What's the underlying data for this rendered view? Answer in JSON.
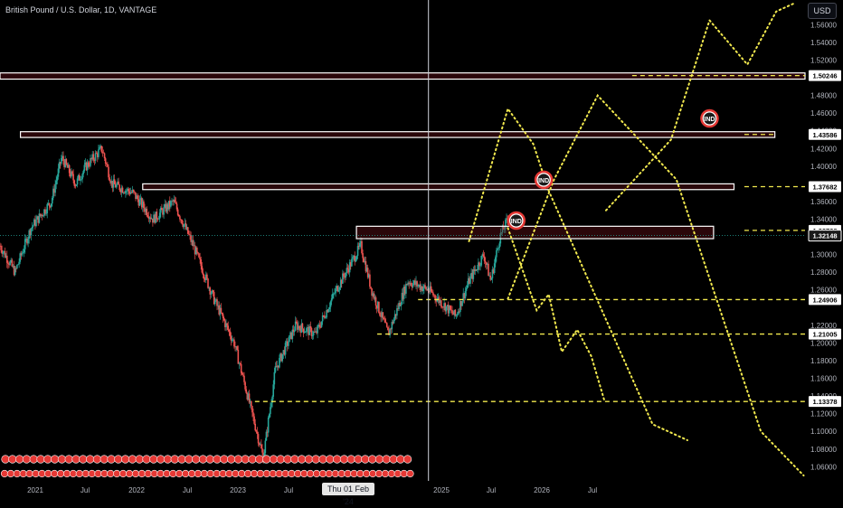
{
  "header": {
    "title": "British Pound / U.S. Dollar, 1D, VANTAGE",
    "currency_button": "USD"
  },
  "crosshair": {
    "date_label": "Thu 01 Feb '24"
  },
  "colors": {
    "background": "#000000",
    "candle_up": "#26a69a",
    "candle_down": "#ef5350",
    "projection": "#f2e94e",
    "level_line": "#f2e94e",
    "zone_border": "#ffffff",
    "marker": "#e53935",
    "axis_text": "#b2b5be"
  },
  "chart_data": {
    "type": "candlestick",
    "title": "British Pound / U.S. Dollar, 1D, VANTAGE",
    "x_axis": {
      "tick_labels": [
        "2021",
        "Jul",
        "2022",
        "Jul",
        "2023",
        "Jul",
        "2025",
        "Jul",
        "2026",
        "Jul"
      ],
      "range": [
        "2020-08",
        "2027-03"
      ]
    },
    "y_axis": {
      "tick_labels": [
        "1.56000",
        "1.54000",
        "1.52000",
        "1.48000",
        "1.46000",
        "1.44000",
        "1.42000",
        "1.40000",
        "1.38000",
        "1.36000",
        "1.34000",
        "1.30000",
        "1.28000",
        "1.26000",
        "1.22000",
        "1.20000",
        "1.18000",
        "1.16000",
        "1.14000",
        "1.12000",
        "1.10000",
        "1.08000",
        "1.06000"
      ],
      "tick_values": [
        1.56,
        1.54,
        1.52,
        1.48,
        1.46,
        1.44,
        1.42,
        1.4,
        1.38,
        1.36,
        1.34,
        1.3,
        1.28,
        1.26,
        1.22,
        1.2,
        1.18,
        1.16,
        1.14,
        1.12,
        1.1,
        1.08,
        1.06
      ],
      "range": [
        1.046,
        1.588
      ],
      "currency": "USD"
    },
    "price_path": {
      "x": [
        "2020-08-01",
        "2020-09-15",
        "2020-11-01",
        "2021-01-01",
        "2021-02-01",
        "2021-03-15",
        "2021-04-15",
        "2021-06-01",
        "2021-07-01",
        "2021-09-01",
        "2021-11-01",
        "2022-01-01",
        "2022-03-01",
        "2022-05-01",
        "2022-07-01",
        "2022-09-26",
        "2022-11-01",
        "2023-01-01",
        "2023-03-01",
        "2023-05-01",
        "2023-07-14",
        "2023-08-15",
        "2023-10-04",
        "2023-12-01",
        "2024-02-01",
        "2024-04-22",
        "2024-06-01",
        "2024-07-15",
        "2024-08-05",
        "2024-09-01",
        "2024-09-25"
      ],
      "y": [
        1.31,
        1.28,
        1.33,
        1.36,
        1.41,
        1.38,
        1.4,
        1.42,
        1.38,
        1.37,
        1.34,
        1.36,
        1.31,
        1.25,
        1.2,
        1.07,
        1.17,
        1.22,
        1.21,
        1.26,
        1.31,
        1.26,
        1.21,
        1.27,
        1.26,
        1.23,
        1.27,
        1.3,
        1.27,
        1.32,
        1.34
      ]
    },
    "current_price": 1.32148,
    "price_levels": [
      1.50246,
      1.43586,
      1.37682,
      1.32738,
      1.32148,
      1.24906,
      1.21005,
      1.13378
    ],
    "price_level_labels": [
      "1.50246",
      "1.43586",
      "1.37682",
      "1.32738",
      "1.32148",
      "1.24906",
      "1.21005",
      "1.13378"
    ],
    "zones": [
      {
        "from": "2020-08",
        "to": "2027-03",
        "y_low": 1.4985,
        "y_high": 1.5055
      },
      {
        "from": "2020-10",
        "to": "2026-12",
        "y_low": 1.4325,
        "y_high": 1.439
      },
      {
        "from": "2021-10",
        "to": "2026-08",
        "y_low": 1.3735,
        "y_high": 1.38
      },
      {
        "from": "2023-07",
        "to": "2026-06",
        "y_low": 1.318,
        "y_high": 1.332
      }
    ],
    "dashed_levels": [
      {
        "from": "2025-10",
        "to": "2027-03",
        "y": 1.50246
      },
      {
        "from": "2026-09",
        "to": "2026-12",
        "y": 1.43586
      },
      {
        "from": "2026-09",
        "to": "2027-03",
        "y": 1.37682
      },
      {
        "from": "2026-09",
        "to": "2027-03",
        "y": 1.32738
      },
      {
        "from": "2024-01",
        "to": "2027-03",
        "y": 1.24906
      },
      {
        "from": "2023-09",
        "to": "2027-03",
        "y": 1.21005
      },
      {
        "from": "2022-09",
        "to": "2027-03",
        "y": 1.13378
      }
    ],
    "projections": [
      {
        "x": [
          "2024-09-25",
          "2024-12-20",
          "2025-01-25",
          "2025-03-05",
          "2025-04-20",
          "2025-06-01",
          "2025-07-10"
        ],
        "y": [
          1.33,
          1.237,
          1.255,
          1.19,
          1.215,
          1.185,
          1.135
        ]
      },
      {
        "x": [
          "2024-06-01",
          "2024-09-25",
          "2024-12-10",
          "2025-01-25",
          "2025-12-01",
          "2026-03-15"
        ],
        "y": [
          1.315,
          1.465,
          1.425,
          1.372,
          1.108,
          1.09
        ]
      },
      {
        "x": [
          "2024-09-25",
          "2025-02-10",
          "2025-06-20",
          "2026-02-10",
          "2026-10-20",
          "2027-02-25"
        ],
        "y": [
          1.25,
          1.385,
          1.48,
          1.385,
          1.1,
          1.05
        ]
      },
      {
        "x": [
          "2025-07-15",
          "2026-01-25",
          "2026-05-20",
          "2026-09-10",
          "2026-12-05",
          "2027-02-01"
        ],
        "y": [
          1.35,
          1.43,
          1.565,
          1.515,
          1.575,
          1.585
        ]
      }
    ],
    "markers": [
      {
        "x": "2024-10-20",
        "y": 1.3385,
        "label": "IND"
      },
      {
        "x": "2025-01-10",
        "y": 1.3846,
        "label": "IND"
      },
      {
        "x": "2026-05-20",
        "y": 1.454,
        "label": "IND"
      }
    ],
    "crosshair": {
      "x": "2024-02-01",
      "label": "Thu 01 Feb '24"
    },
    "grid": false,
    "legend": "none"
  }
}
